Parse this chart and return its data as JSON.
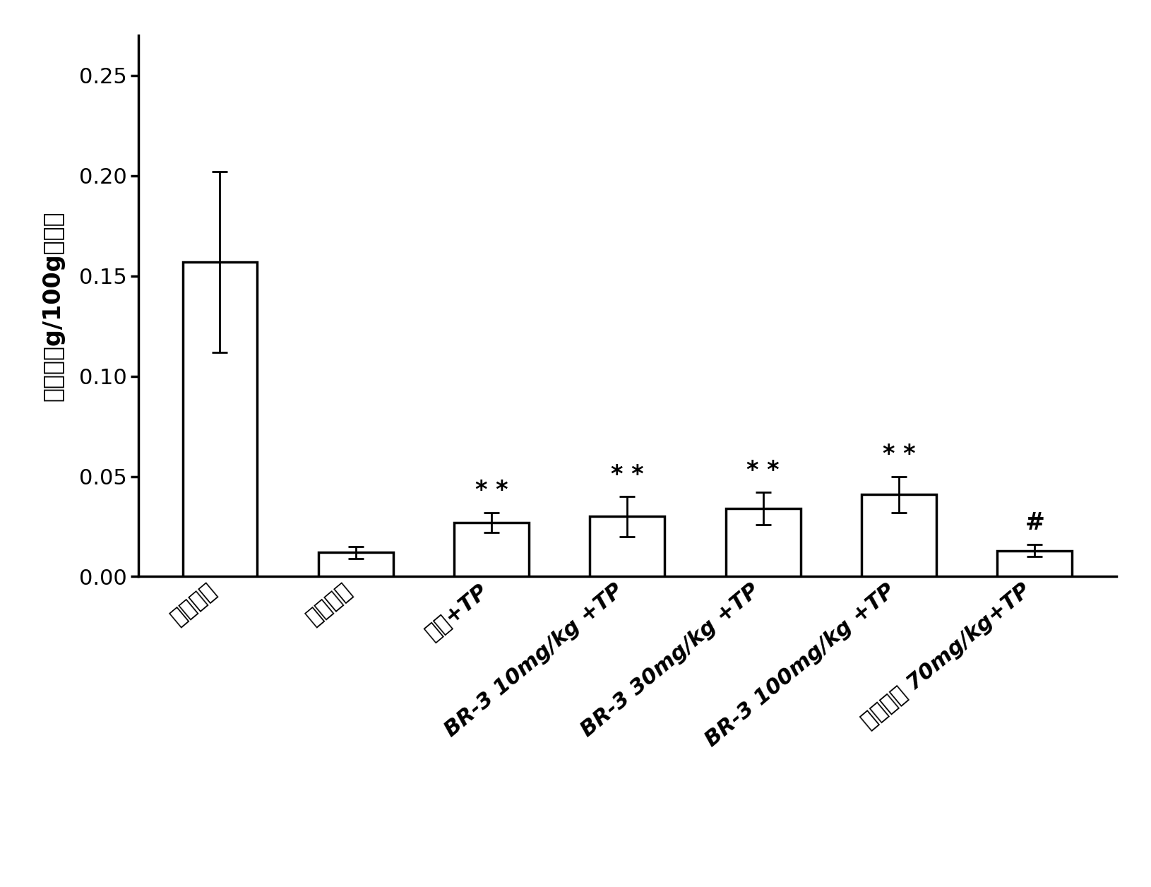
{
  "categories": [
    "正常对照",
    "去势对照",
    "去势+TP",
    "BR-3 10mg/kg +TP",
    "BR-3 30mg/kg +TP",
    "BR-3 100mg/kg +TP",
    "非那雄胺 70mg/kg+TP"
  ],
  "values": [
    0.157,
    0.012,
    0.027,
    0.03,
    0.034,
    0.041,
    0.013
  ],
  "errors": [
    0.045,
    0.003,
    0.005,
    0.01,
    0.008,
    0.009,
    0.003
  ],
  "annotations": [
    "",
    "",
    "* *",
    "* *",
    "* *",
    "* *",
    "#"
  ],
  "bold_labels": [
    false,
    false,
    true,
    true,
    true,
    true,
    true
  ],
  "ylabel_cn": "精囊腺（g/100g体重）",
  "ylim": [
    0,
    0.27
  ],
  "yticks": [
    0.0,
    0.05,
    0.1,
    0.15,
    0.2,
    0.25
  ],
  "bar_color": "#ffffff",
  "bar_edgecolor": "#000000",
  "bar_linewidth": 2.5,
  "errorbar_color": "#000000",
  "errorbar_linewidth": 2.0,
  "errorbar_capsize": 8,
  "annotation_fontsize": 24,
  "ylabel_fontsize": 24,
  "tick_fontsize": 22,
  "xlabel_rotation": 40,
  "background_color": "#ffffff"
}
